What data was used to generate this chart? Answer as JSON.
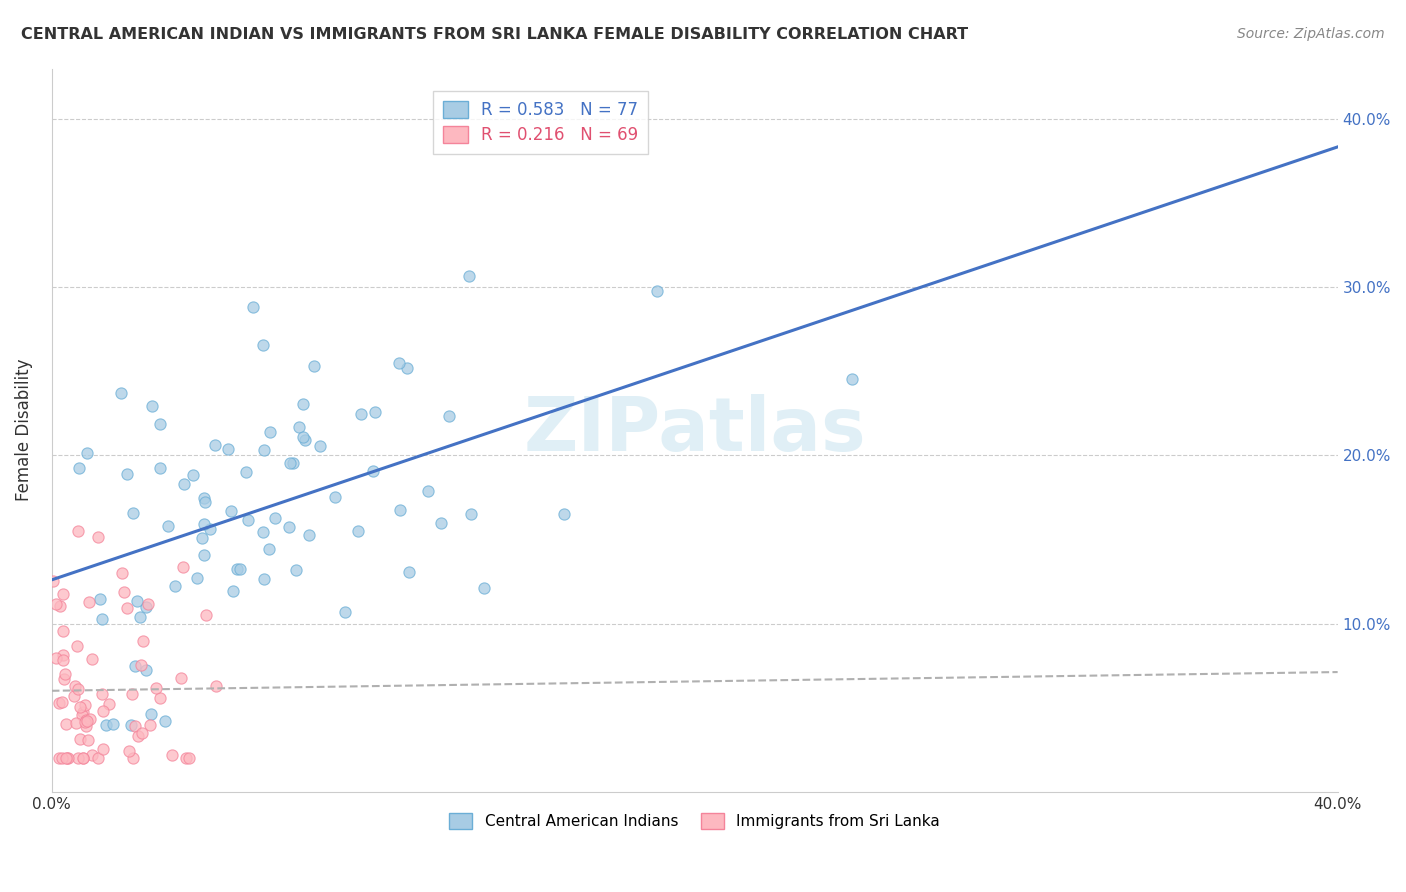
{
  "title": "CENTRAL AMERICAN INDIAN VS IMMIGRANTS FROM SRI LANKA FEMALE DISABILITY CORRELATION CHART",
  "source": "Source: ZipAtlas.com",
  "ylabel": "Female Disability",
  "xlim": [
    0.0,
    0.4
  ],
  "ylim": [
    0.0,
    0.43
  ],
  "blue_R": 0.583,
  "blue_N": 77,
  "pink_R": 0.216,
  "pink_N": 69,
  "blue_scatter_color_face": "#a8cce4",
  "blue_scatter_color_edge": "#6baed6",
  "pink_scatter_color_face": "#fdb8c0",
  "pink_scatter_color_edge": "#f4849a",
  "blue_line_color": "#4472c4",
  "pink_line_color": "#b0b0b0",
  "watermark": "ZIPatlas",
  "legend_label_blue": "Central American Indians",
  "legend_label_pink": "Immigrants from Sri Lanka",
  "right_ytick_labels": [
    "10.0%",
    "20.0%",
    "30.0%",
    "40.0%"
  ],
  "right_ytick_color": "#4472c4",
  "xtick_left_label": "0.0%",
  "xtick_right_label": "40.0%"
}
